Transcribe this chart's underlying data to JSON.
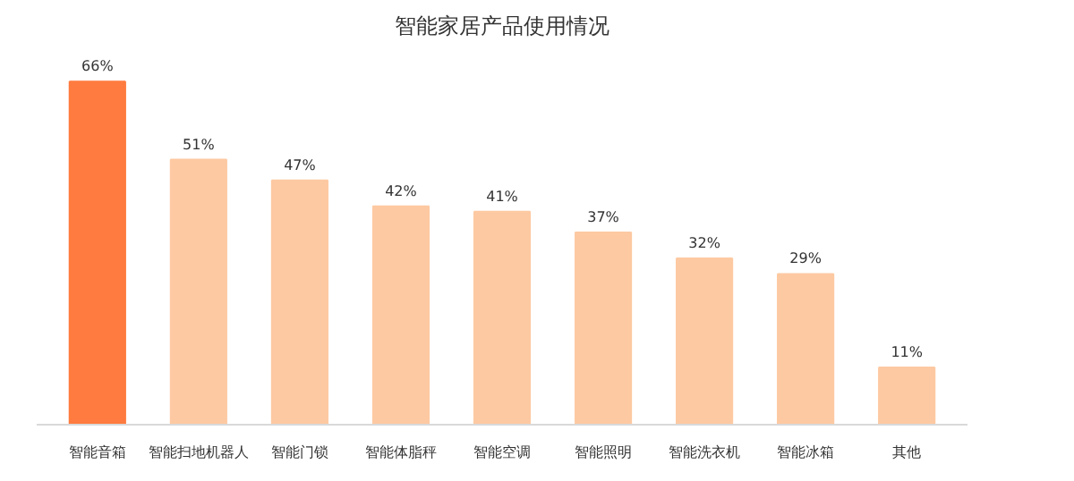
{
  "chart_data": {
    "type": "bar",
    "title": "智能家居产品使用情况",
    "categories": [
      "智能音箱",
      "智能扫地机器人",
      "智能门锁",
      "智能体脂秤",
      "智能空调",
      "智能照明",
      "智能洗衣机",
      "智能冰箱",
      "其他"
    ],
    "values": [
      66,
      51,
      47,
      42,
      41,
      37,
      32,
      29,
      11
    ],
    "colors": [
      "#ff7b3f",
      "#fdc9a2",
      "#fdc9a2",
      "#fdc9a2",
      "#fdc9a2",
      "#fdc9a2",
      "#fdc9a2",
      "#fdc9a2",
      "#fdc9a2"
    ],
    "value_labels": [
      "66%",
      "51%",
      "47%",
      "42%",
      "41%",
      "37%",
      "32%",
      "29%",
      "11%"
    ]
  }
}
